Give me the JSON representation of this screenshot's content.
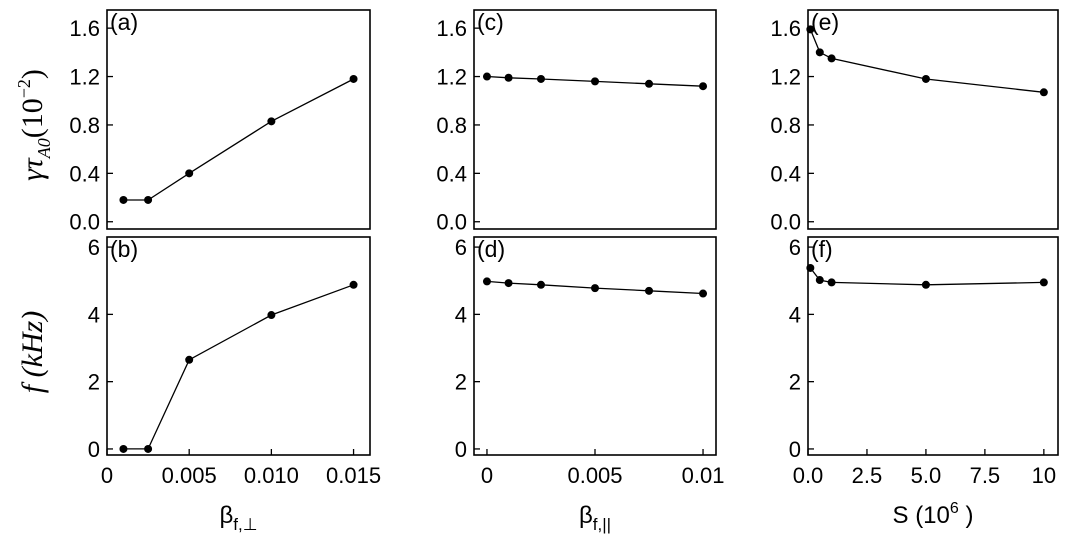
{
  "figure": {
    "ylabel_top": "γτ",
    "ylabel_top_sub": "A0",
    "ylabel_top_paren": "(10",
    "ylabel_top_sup": "−2",
    "ylabel_top_close": ")",
    "ylabel_bottom": "f (kHz)"
  },
  "chart_data": [
    {
      "id": "a",
      "type": "line",
      "panel_label": "(a)",
      "row": 0,
      "col": 0,
      "x": [
        0.001,
        0.0025,
        0.005,
        0.01,
        0.015
      ],
      "y": [
        0.18,
        0.18,
        0.4,
        0.83,
        1.18
      ],
      "xlim": [
        0,
        0.016
      ],
      "ylim": [
        -0.06,
        1.75
      ],
      "yticks": [
        0.0,
        0.4,
        0.8,
        1.2,
        1.6
      ],
      "ytick_labels": [
        "0.0",
        "0.4",
        "0.8",
        "1.2",
        "1.6"
      ]
    },
    {
      "id": "b",
      "type": "line",
      "panel_label": "(b)",
      "row": 1,
      "col": 0,
      "x": [
        0.001,
        0.0025,
        0.005,
        0.01,
        0.015
      ],
      "y": [
        0.0,
        0.0,
        2.65,
        3.98,
        4.88
      ],
      "xlim": [
        0,
        0.016
      ],
      "ylim": [
        -0.18,
        6.3
      ],
      "yticks": [
        0,
        2,
        4,
        6
      ],
      "ytick_labels": [
        "0",
        "2",
        "4",
        "6"
      ],
      "xticks": [
        0,
        0.005,
        0.01,
        0.015
      ],
      "xtick_labels": [
        "0",
        "0.005",
        "0.010",
        "0.015"
      ],
      "xlabel": "β",
      "xlabel_sub": "f,⊥"
    },
    {
      "id": "c",
      "type": "line",
      "panel_label": "(c)",
      "row": 0,
      "col": 1,
      "x": [
        0,
        0.001,
        0.0025,
        0.005,
        0.0075,
        0.01
      ],
      "y": [
        1.2,
        1.19,
        1.18,
        1.16,
        1.14,
        1.12
      ],
      "xlim": [
        -0.0006,
        0.0106
      ],
      "ylim": [
        -0.06,
        1.75
      ],
      "yticks": [
        0.0,
        0.4,
        0.8,
        1.2,
        1.6
      ],
      "ytick_labels": [
        "0.0",
        "0.4",
        "0.8",
        "1.2",
        "1.6"
      ]
    },
    {
      "id": "d",
      "type": "line",
      "panel_label": "(d)",
      "row": 1,
      "col": 1,
      "x": [
        0,
        0.001,
        0.0025,
        0.005,
        0.0075,
        0.01
      ],
      "y": [
        4.98,
        4.93,
        4.88,
        4.78,
        4.7,
        4.62
      ],
      "xlim": [
        -0.0006,
        0.0106
      ],
      "ylim": [
        -0.18,
        6.3
      ],
      "yticks": [
        0,
        2,
        4,
        6
      ],
      "ytick_labels": [
        "0",
        "2",
        "4",
        "6"
      ],
      "xticks": [
        0,
        0.005,
        0.01
      ],
      "xtick_labels": [
        "0",
        "0.005",
        "0.01"
      ],
      "xlabel": "β",
      "xlabel_sub": "f,||"
    },
    {
      "id": "e",
      "type": "line",
      "panel_label": "(e)",
      "row": 0,
      "col": 2,
      "x": [
        0.1,
        0.5,
        1,
        5,
        10
      ],
      "y": [
        1.59,
        1.4,
        1.35,
        1.18,
        1.07
      ],
      "xlim": [
        0,
        10.6
      ],
      "ylim": [
        -0.06,
        1.75
      ],
      "yticks": [
        0.0,
        0.4,
        0.8,
        1.2,
        1.6
      ],
      "ytick_labels": [
        "0.0",
        "0.4",
        "0.8",
        "1.2",
        "1.6"
      ]
    },
    {
      "id": "f",
      "type": "line",
      "panel_label": "(f)",
      "row": 1,
      "col": 2,
      "x": [
        0.1,
        0.5,
        1,
        5,
        10
      ],
      "y": [
        5.38,
        5.02,
        4.95,
        4.88,
        4.95
      ],
      "xlim": [
        0,
        10.6
      ],
      "ylim": [
        -0.18,
        6.3
      ],
      "yticks": [
        0,
        2,
        4,
        6
      ],
      "ytick_labels": [
        "0",
        "2",
        "4",
        "6"
      ],
      "xticks": [
        0,
        2.5,
        5,
        7.5,
        10
      ],
      "xtick_labels": [
        "0.0",
        "2.5",
        "5.0",
        "7.5",
        "10"
      ],
      "xlabel": "S (10",
      "xlabel_sup": "6",
      "xlabel_close": " )"
    }
  ]
}
